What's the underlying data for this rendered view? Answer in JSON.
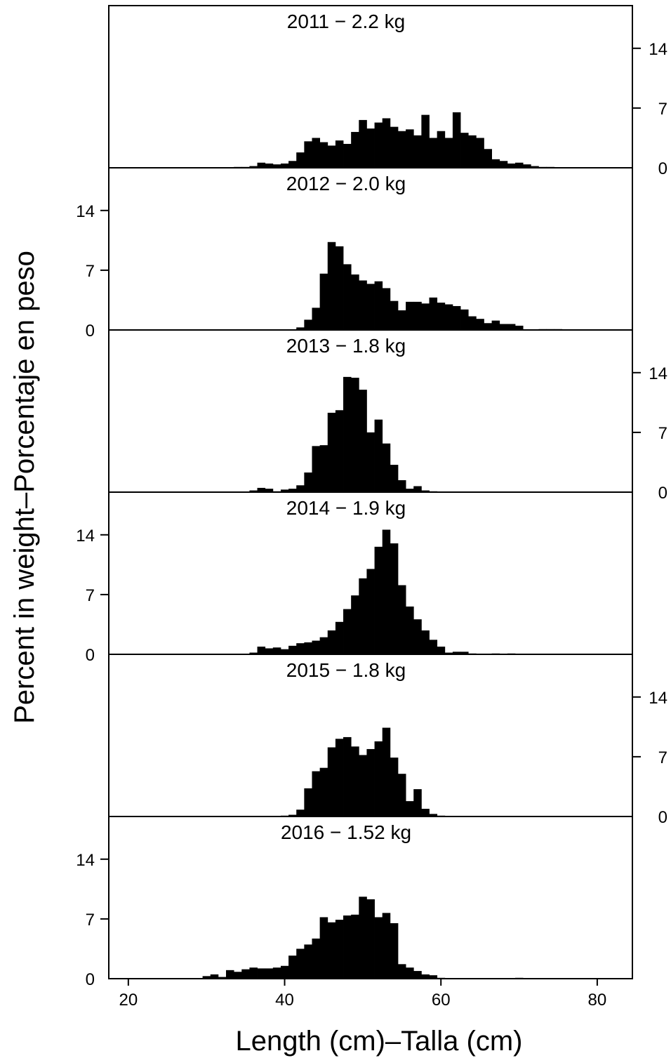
{
  "chart_data": {
    "type": "bar",
    "layout": "stacked panels, shared x-axis, y-axis ticks alternate right/left",
    "xlabel": "Length (cm)–Talla (cm)",
    "ylabel": "Percent in weight–Porcentaje en peso",
    "xlim": [
      17.5,
      84.5
    ],
    "xticks": [
      20,
      40,
      60,
      80
    ],
    "ylim": [
      0,
      19
    ],
    "yticks": [
      0,
      7,
      14
    ],
    "bin_width_cm": 1,
    "x": [
      30,
      31,
      32,
      33,
      34,
      35,
      36,
      37,
      38,
      39,
      40,
      41,
      42,
      43,
      44,
      45,
      46,
      47,
      48,
      49,
      50,
      51,
      52,
      53,
      54,
      55,
      56,
      57,
      58,
      59,
      60,
      61,
      62,
      63,
      64,
      65,
      66,
      67,
      68,
      69,
      70,
      71,
      72,
      73,
      74,
      75,
      76
    ],
    "panels": [
      {
        "title": "2011 − 2.2 kg",
        "y_axis_side": "right",
        "values": [
          0,
          0,
          0,
          0,
          0.1,
          0.1,
          0.2,
          0.6,
          0.5,
          0.4,
          0.5,
          0.8,
          1.8,
          3.1,
          3.5,
          3.0,
          2.6,
          3.2,
          2.8,
          4.2,
          5.6,
          4.6,
          5.3,
          5.8,
          4.8,
          4.3,
          4.5,
          3.8,
          6.2,
          3.5,
          4.3,
          3.5,
          6.5,
          4.1,
          3.8,
          3.5,
          2.2,
          1.0,
          0.8,
          0.5,
          0.6,
          0.4,
          0.2,
          0.1,
          0.1,
          0,
          0
        ]
      },
      {
        "title": "2012 − 2.0 kg",
        "y_axis_side": "left",
        "values": [
          0,
          0,
          0,
          0,
          0,
          0,
          0,
          0,
          0,
          0,
          0,
          0,
          0.3,
          1.2,
          2.6,
          6.6,
          10.3,
          9.8,
          7.7,
          6.5,
          5.8,
          5.4,
          5.7,
          4.9,
          3.4,
          2.3,
          3.3,
          3.3,
          3.1,
          3.8,
          3.2,
          3.0,
          2.8,
          2.4,
          1.6,
          1.3,
          0.8,
          1.1,
          0.7,
          0.7,
          0.5,
          0,
          0,
          0.1,
          0.1,
          0.1,
          0
        ]
      },
      {
        "title": "2013 − 1.8 kg",
        "y_axis_side": "right",
        "values": [
          0,
          0,
          0,
          0,
          0,
          0,
          0.2,
          0.5,
          0.4,
          0.1,
          0.3,
          0.4,
          0.8,
          2.3,
          5.4,
          5.5,
          9.3,
          9.6,
          13.5,
          13.4,
          12.0,
          7.0,
          8.5,
          5.7,
          3.2,
          1.4,
          0.4,
          0.7,
          0.2,
          0.1,
          0,
          0,
          0,
          0,
          0,
          0,
          0,
          0,
          0,
          0,
          0,
          0,
          0,
          0,
          0,
          0,
          0
        ]
      },
      {
        "title": "2014 − 1.9 kg",
        "y_axis_side": "left",
        "values": [
          0,
          0,
          0,
          0,
          0,
          0,
          0.2,
          0.9,
          0.7,
          0.8,
          0.6,
          1.0,
          1.3,
          1.4,
          1.6,
          2.0,
          2.8,
          3.8,
          5.3,
          6.9,
          8.9,
          10.0,
          12.6,
          14.6,
          13.0,
          8.1,
          5.6,
          4.1,
          2.8,
          1.7,
          0.9,
          0.2,
          0.3,
          0.3,
          0.1,
          0,
          0,
          0.1,
          0,
          0.1,
          0,
          0,
          0,
          0,
          0,
          0,
          0
        ]
      },
      {
        "title": "2015 − 1.8 kg",
        "y_axis_side": "right",
        "values": [
          0,
          0,
          0,
          0,
          0,
          0,
          0,
          0,
          0,
          0,
          0.1,
          0.2,
          0.8,
          3.3,
          5.3,
          5.7,
          8.1,
          9.1,
          9.3,
          8.2,
          7.2,
          7.9,
          8.8,
          10.4,
          6.9,
          5.0,
          1.8,
          3.2,
          0.9,
          0.3,
          0.1,
          0,
          0,
          0,
          0,
          0,
          0,
          0,
          0,
          0,
          0,
          0,
          0,
          0,
          0,
          0,
          0
        ]
      },
      {
        "title": "2016 − 1.52 kg",
        "y_axis_side": "left",
        "values": [
          0.3,
          0.5,
          0.2,
          1.0,
          0.8,
          1.1,
          1.3,
          1.2,
          1.2,
          1.3,
          1.5,
          2.7,
          3.5,
          4.0,
          4.7,
          7.2,
          6.6,
          6.9,
          7.4,
          7.5,
          9.6,
          9.3,
          7.2,
          7.7,
          6.5,
          1.7,
          1.3,
          0.9,
          0.5,
          0.4,
          0.1,
          0,
          0,
          0,
          0,
          0,
          0,
          0,
          0,
          0,
          0.1,
          0,
          0,
          0,
          0,
          0,
          0
        ]
      }
    ]
  }
}
